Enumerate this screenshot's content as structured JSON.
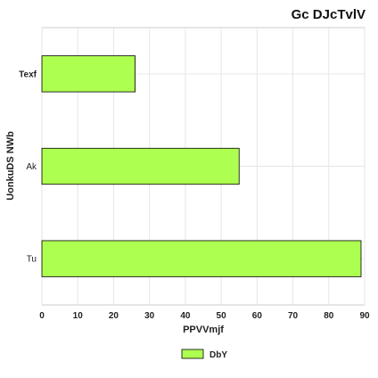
{
  "chart_data": {
    "type": "bar",
    "orientation": "horizontal",
    "title": "Gc DJcTvlV",
    "xlabel": "PPVVmjf",
    "ylabel": "UonkuDS NWb",
    "categories": [
      "Texf",
      "Ak",
      "Tu"
    ],
    "series": [
      {
        "name": "DbY",
        "values": [
          26,
          55,
          89
        ],
        "color": "#adff50"
      }
    ],
    "xlim": [
      0,
      90
    ],
    "xticks": [
      0,
      10,
      20,
      30,
      40,
      50,
      60,
      70,
      80,
      90
    ],
    "grid": true,
    "legend_position": "bottom-center",
    "bar_edge_color": "#000000"
  }
}
